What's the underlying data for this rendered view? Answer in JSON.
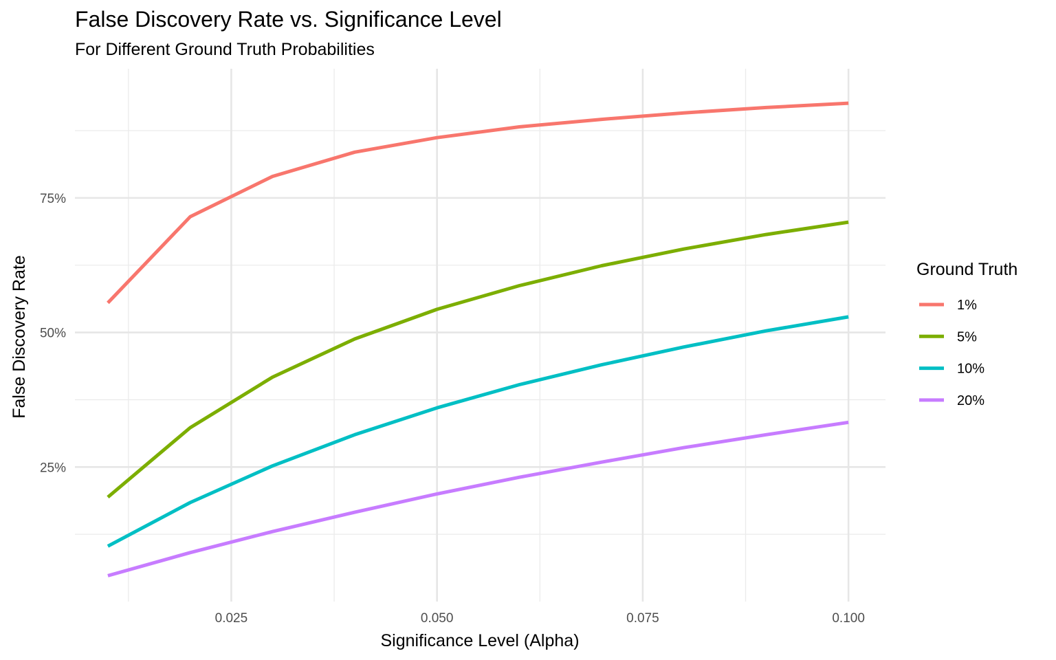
{
  "chart_data": {
    "type": "line",
    "title": "False Discovery Rate vs. Significance Level",
    "subtitle": "For Different Ground Truth Probabilities",
    "xlabel": "Significance Level (Alpha)",
    "ylabel": "False Discovery Rate",
    "x": [
      0.01,
      0.02,
      0.03,
      0.04,
      0.05,
      0.06,
      0.07,
      0.08,
      0.09,
      0.1
    ],
    "xlim": [
      0.006,
      0.1045
    ],
    "ylim": [
      0.0,
      0.99
    ],
    "x_ticks": [
      0.025,
      0.05,
      0.075,
      0.1
    ],
    "x_tick_labels": [
      "0.025",
      "0.050",
      "0.075",
      "0.100"
    ],
    "y_ticks": [
      0.25,
      0.5,
      0.75
    ],
    "y_tick_labels": [
      "25%",
      "50%",
      "75%"
    ],
    "grid": true,
    "legend": {
      "title": "Ground Truth",
      "position": "right"
    },
    "series": [
      {
        "name": "1%",
        "color": "#F8766D",
        "values": [
          0.555,
          0.715,
          0.79,
          0.835,
          0.862,
          0.882,
          0.896,
          0.908,
          0.918,
          0.926
        ]
      },
      {
        "name": "5%",
        "color": "#7CAE00",
        "values": [
          0.194,
          0.323,
          0.417,
          0.488,
          0.543,
          0.587,
          0.624,
          0.655,
          0.682,
          0.705
        ]
      },
      {
        "name": "10%",
        "color": "#00BFC4",
        "values": [
          0.103,
          0.184,
          0.252,
          0.31,
          0.36,
          0.403,
          0.44,
          0.473,
          0.503,
          0.529
        ]
      },
      {
        "name": "20%",
        "color": "#C77CFF",
        "values": [
          0.048,
          0.091,
          0.13,
          0.166,
          0.2,
          0.231,
          0.259,
          0.286,
          0.31,
          0.333
        ]
      }
    ]
  }
}
